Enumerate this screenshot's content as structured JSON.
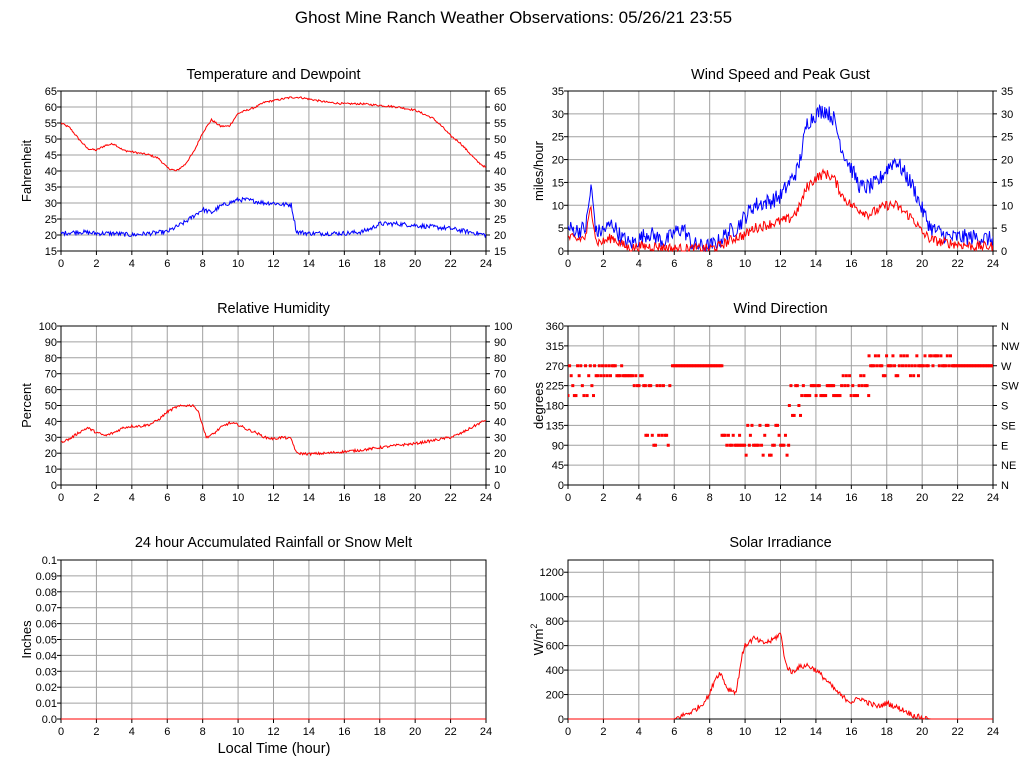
{
  "page": {
    "title": "Ghost Mine Ranch Weather Observations: 05/26/21 23:55",
    "x_axis_label": "Local Time (hour)"
  },
  "colors": {
    "red": "#ff0000",
    "blue": "#0000ff",
    "grid": "#a0a0a0"
  },
  "chart_data": [
    {
      "id": "temperature",
      "type": "line",
      "title": "Temperature and Dewpoint",
      "ylabel": "Fahrenheit",
      "xlim": [
        0,
        24
      ],
      "ylim": [
        15,
        65
      ],
      "yticks": [
        15,
        20,
        25,
        30,
        35,
        40,
        45,
        50,
        55,
        60,
        65
      ],
      "ytick_labels": [
        "15",
        "20",
        "25",
        "30",
        "35",
        "40",
        "45",
        "50",
        "55",
        "60",
        "65"
      ],
      "right_axis": true,
      "right_tick_labels": [
        "15",
        "20",
        "25",
        "30",
        "35",
        "40",
        "45",
        "50",
        "55",
        "60",
        "65"
      ],
      "grid": true,
      "series": [
        {
          "color": "red",
          "noise": 0.3,
          "x": [
            0,
            0.5,
            1,
            1.5,
            2,
            2.5,
            3,
            3.5,
            4,
            4.5,
            5,
            5.5,
            6,
            6.5,
            7,
            7.5,
            8,
            8.5,
            9,
            9.5,
            10,
            10.5,
            11,
            11.5,
            12,
            12.5,
            13,
            13.5,
            14,
            15,
            16,
            17,
            18,
            19,
            20,
            21,
            21.5,
            22,
            22.5,
            23,
            23.5,
            24
          ],
          "y": [
            55,
            53.5,
            50,
            47,
            46.5,
            48,
            48.5,
            46.5,
            46,
            45.5,
            45,
            44,
            41,
            40,
            42,
            46,
            52,
            56,
            54,
            54,
            58,
            59,
            60,
            61.5,
            62,
            62.5,
            63,
            63,
            62.5,
            61.5,
            61,
            61,
            60.5,
            60,
            59,
            56.5,
            54,
            51,
            49,
            46,
            43,
            41
          ]
        },
        {
          "color": "blue",
          "noise": 0.7,
          "x": [
            0,
            1,
            2,
            3,
            4,
            5,
            6,
            6.5,
            7,
            7.5,
            8,
            8.5,
            9,
            9.5,
            10,
            10.5,
            11,
            11.5,
            12,
            12.5,
            13,
            13.3,
            14,
            15,
            16,
            17,
            17.5,
            18,
            19,
            20,
            21,
            22,
            23,
            24
          ],
          "y": [
            20.5,
            21,
            20.5,
            20.5,
            20,
            20.5,
            21,
            22.5,
            24,
            26,
            28,
            27,
            29,
            30,
            31,
            31,
            30.5,
            30,
            30,
            29.5,
            29.5,
            21,
            20.5,
            20.5,
            20.5,
            21,
            22,
            23.5,
            23.5,
            23,
            22.5,
            22,
            21,
            20
          ]
        }
      ]
    },
    {
      "id": "wind",
      "type": "line",
      "title": "Wind Speed and Peak Gust",
      "ylabel": "miles/hour",
      "xlim": [
        0,
        24
      ],
      "ylim": [
        0,
        35
      ],
      "yticks": [
        0,
        5,
        10,
        15,
        20,
        25,
        30,
        35
      ],
      "ytick_labels": [
        "0",
        "5",
        "10",
        "15",
        "20",
        "25",
        "30",
        "35"
      ],
      "right_axis": true,
      "right_tick_labels": [
        "0",
        "5",
        "10",
        "15",
        "20",
        "25",
        "30",
        "35"
      ],
      "grid": true,
      "series": [
        {
          "color": "blue",
          "noise": 1.8,
          "x": [
            0,
            0.5,
            1,
            1.3,
            1.6,
            2,
            2.5,
            3,
            3.5,
            4,
            4.5,
            5,
            5.5,
            6,
            6.5,
            7,
            7.5,
            8,
            8.5,
            9,
            9.5,
            10,
            10.5,
            11,
            11.5,
            12,
            12.5,
            13,
            13.5,
            14,
            14.5,
            15,
            15.5,
            16,
            16.5,
            17,
            17.5,
            18,
            18.5,
            19,
            19.5,
            20,
            20.5,
            21,
            21.5,
            22,
            23,
            24
          ],
          "y": [
            5,
            4.5,
            5,
            14,
            4,
            4.5,
            6,
            3,
            1.5,
            2.5,
            4,
            3,
            2,
            4,
            5,
            1.5,
            1,
            1,
            2,
            4,
            5,
            7.5,
            10,
            10.5,
            11,
            12,
            15,
            18,
            28,
            30,
            31,
            29,
            22,
            18,
            14,
            14,
            15,
            18,
            20,
            17,
            14,
            9,
            5,
            4,
            3,
            3,
            3,
            2.5
          ]
        },
        {
          "color": "red",
          "noise": 1.1,
          "x": [
            0,
            0.5,
            1,
            1.3,
            1.6,
            2,
            2.5,
            3,
            3.5,
            4,
            5,
            6,
            7,
            8,
            8.5,
            9,
            9.5,
            10,
            10.5,
            11,
            11.5,
            12,
            12.5,
            13,
            13.5,
            14,
            14.5,
            15,
            15.5,
            16,
            16.5,
            17,
            17.5,
            18,
            18.5,
            19,
            19.5,
            20,
            20.5,
            21,
            22,
            23,
            24
          ],
          "y": [
            3,
            2.5,
            3,
            10,
            2,
            2,
            3,
            1.5,
            0.5,
            1,
            1,
            0.5,
            0.5,
            0.5,
            1,
            2,
            3,
            3.5,
            5,
            5.5,
            6,
            6.5,
            7,
            9,
            14,
            16,
            17,
            16,
            12,
            10,
            9,
            8,
            9,
            10,
            10,
            8.5,
            7,
            4,
            2.5,
            2,
            1.5,
            1,
            1
          ]
        }
      ]
    },
    {
      "id": "humidity",
      "type": "line",
      "title": "Relative Humidity",
      "ylabel": "Percent",
      "xlim": [
        0,
        24
      ],
      "ylim": [
        0,
        100
      ],
      "yticks": [
        0,
        10,
        20,
        30,
        40,
        50,
        60,
        70,
        80,
        90,
        100
      ],
      "ytick_labels": [
        "0",
        "10",
        "20",
        "30",
        "40",
        "50",
        "60",
        "70",
        "80",
        "90",
        "100"
      ],
      "right_axis": true,
      "right_tick_labels": [
        "0",
        "10",
        "20",
        "30",
        "40",
        "50",
        "60",
        "70",
        "80",
        "90",
        "100"
      ],
      "grid": true,
      "series": [
        {
          "color": "red",
          "noise": 0.8,
          "x": [
            0,
            0.5,
            1,
            1.5,
            2,
            2.5,
            3,
            3.5,
            4,
            4.5,
            5,
            5.5,
            6,
            6.5,
            7,
            7.5,
            7.8,
            8.2,
            8.6,
            9,
            9.5,
            10,
            10.5,
            11,
            11.5,
            12,
            12.5,
            13,
            13.3,
            14,
            15,
            16,
            17,
            18,
            19,
            20,
            21,
            22,
            22.5,
            23,
            23.5,
            24
          ],
          "y": [
            27,
            29,
            33,
            36,
            33,
            31,
            33,
            36,
            37,
            37,
            38,
            41,
            46,
            49,
            50,
            50,
            45,
            30,
            32,
            36,
            39,
            38,
            35,
            33,
            30,
            29,
            30,
            29,
            20,
            19.5,
            20,
            21,
            22,
            23.5,
            25,
            26,
            28,
            30,
            32,
            35,
            38,
            41
          ]
        }
      ]
    },
    {
      "id": "wind-direction",
      "type": "scatter",
      "title": "Wind Direction",
      "ylabel": "degrees",
      "xlim": [
        0,
        24
      ],
      "ylim": [
        0,
        360
      ],
      "yticks": [
        0,
        45,
        90,
        135,
        180,
        225,
        270,
        315,
        360
      ],
      "ytick_labels": [
        "0",
        "45",
        "90",
        "135",
        "180",
        "225",
        "270",
        "315",
        "360"
      ],
      "right_axis": true,
      "right_tick_labels": [
        "N",
        "NE",
        "E",
        "SE",
        "S",
        "SW",
        "W",
        "NW",
        "N"
      ],
      "grid": true,
      "series": [
        {
          "color": "red",
          "segments": [
            {
              "x": [
                0,
                1.5
              ],
              "levels": [
                247.5,
                270,
                225,
                202.5
              ]
            },
            {
              "x": [
                1.5,
                3.2
              ],
              "levels": [
                270,
                247.5
              ]
            },
            {
              "x": [
                3.2,
                4.4
              ],
              "levels": [
                225,
                225,
                247.5
              ]
            },
            {
              "x": [
                4.4,
                5.8
              ],
              "levels": [
                112.5,
                112.5,
                90,
                225
              ]
            },
            {
              "x": [
                5.9,
                8.7
              ],
              "levels": [
                270
              ]
            },
            {
              "x": [
                8.7,
                9.7
              ],
              "levels": [
                112.5,
                112.5,
                90
              ]
            },
            {
              "x": [
                9.7,
                10.3
              ],
              "levels": [
                67.5,
                90,
                135
              ]
            },
            {
              "x": [
                10.3,
                12.5
              ],
              "levels": [
                112.5,
                90,
                90,
                67.5,
                135
              ]
            },
            {
              "x": [
                12.5,
                13.2
              ],
              "levels": [
                180,
                157.5,
                225
              ]
            },
            {
              "x": [
                13.2,
                15.0
              ],
              "levels": [
                202.5,
                202.5,
                225
              ]
            },
            {
              "x": [
                15.0,
                17.0
              ],
              "levels": [
                225,
                247.5,
                202.5
              ]
            },
            {
              "x": [
                17.0,
                19.8
              ],
              "levels": [
                270,
                270,
                292.5,
                247.5
              ]
            },
            {
              "x": [
                19.8,
                21.8
              ],
              "levels": [
                292.5,
                270
              ]
            },
            {
              "x": [
                21.8,
                24
              ],
              "levels": [
                270
              ]
            }
          ]
        }
      ]
    },
    {
      "id": "rainfall",
      "type": "line",
      "title": "24 hour Accumulated Rainfall or Snow Melt",
      "ylabel": "Inches",
      "xlim": [
        0,
        24
      ],
      "ylim": [
        0,
        0.1
      ],
      "yticks": [
        0,
        0.01,
        0.02,
        0.03,
        0.04,
        0.05,
        0.06,
        0.07,
        0.08,
        0.09,
        0.1
      ],
      "ytick_labels": [
        "0.0",
        "0.01",
        "0.02",
        "0.03",
        "0.04",
        "0.05",
        "0.06",
        "0.07",
        "0.08",
        "0.09",
        "0.1"
      ],
      "right_axis": false,
      "grid": true,
      "series": [
        {
          "color": "red",
          "noise": 0,
          "x": [
            0,
            24
          ],
          "y": [
            0,
            0
          ]
        }
      ]
    },
    {
      "id": "solar",
      "type": "line",
      "title": "Solar Irradiance",
      "ylabel": "W/m",
      "ylabel_sup": "2",
      "xlim": [
        0,
        24
      ],
      "ylim": [
        0,
        1300
      ],
      "yticks": [
        0,
        200,
        400,
        600,
        800,
        1000,
        1200
      ],
      "ytick_labels": [
        "0",
        "200",
        "400",
        "600",
        "800",
        "1000",
        "1200"
      ],
      "right_axis": false,
      "grid": true,
      "series": [
        {
          "color": "red",
          "noise": 22,
          "x": [
            0,
            6,
            6.5,
            7,
            7.5,
            8,
            8.3,
            8.6,
            9,
            9.5,
            9.8,
            10,
            10.5,
            11,
            11.5,
            12,
            12.3,
            12.6,
            13,
            13.5,
            14,
            14.5,
            15,
            15.5,
            16,
            16.5,
            17,
            17.5,
            18,
            18.5,
            19,
            19.5,
            20,
            20.5,
            24
          ],
          "y": [
            0,
            0,
            30,
            60,
            110,
            200,
            330,
            380,
            250,
            220,
            500,
            600,
            660,
            620,
            640,
            700,
            450,
            380,
            420,
            440,
            400,
            330,
            250,
            180,
            140,
            170,
            130,
            100,
            130,
            100,
            70,
            30,
            10,
            0,
            0
          ]
        }
      ]
    }
  ]
}
